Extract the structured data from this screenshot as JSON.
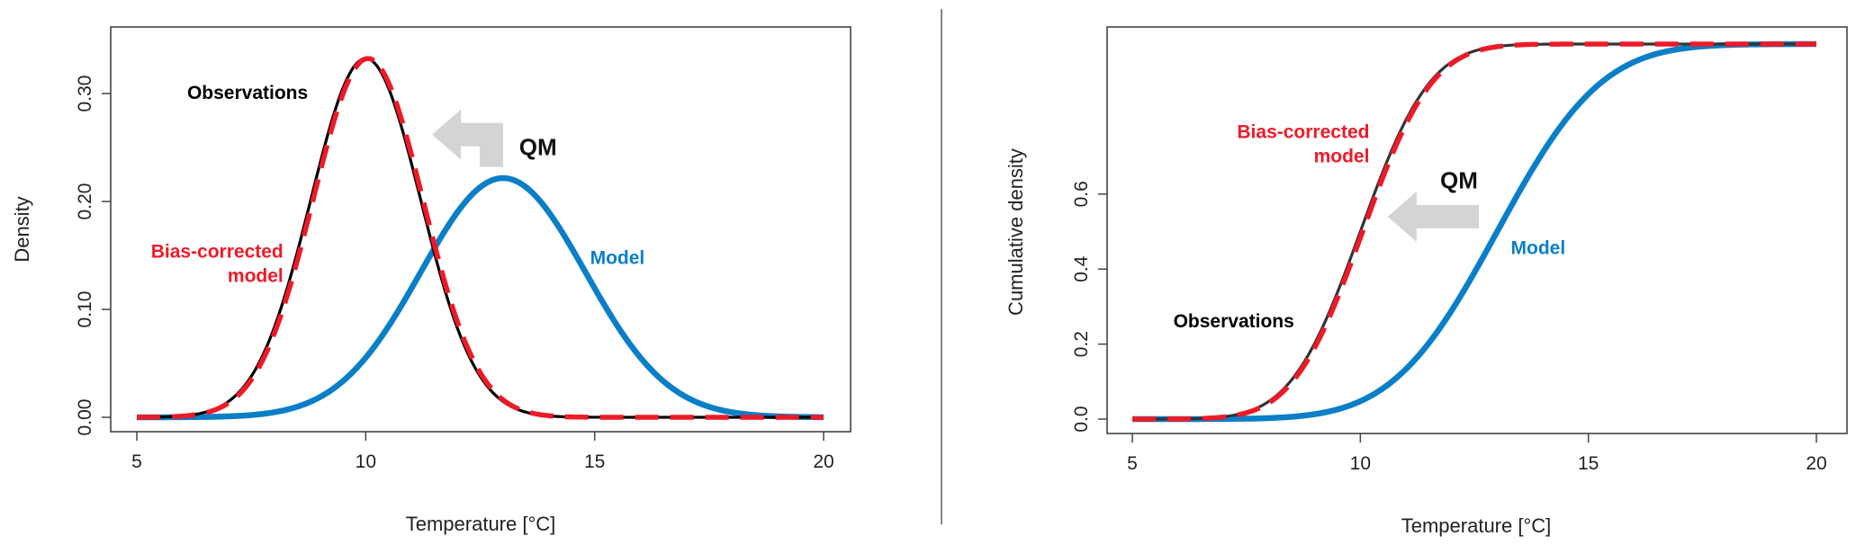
{
  "colors": {
    "observations": "#000000",
    "observations_cdf": "#333333",
    "model": "#0a7fc8",
    "bias_corrected": "#ee1a27",
    "arrow": "#d4d4d4",
    "separator": "#888888"
  },
  "chart_data": [
    {
      "type": "line",
      "title": "",
      "xlabel": "Temperature [°C]",
      "ylabel": "Density",
      "xlim": [
        5,
        20
      ],
      "ylim": [
        0,
        0.33
      ],
      "x_ticks": [
        "5",
        "10",
        "15",
        "20"
      ],
      "y_ticks": [
        "0.00",
        "0.10",
        "0.20",
        "0.30"
      ],
      "grid": false,
      "series": [
        {
          "name": "Observations",
          "kind": "normal_pdf",
          "mean": 10,
          "sd": 1.2,
          "color_key": "observations",
          "dashed": false
        },
        {
          "name": "Model",
          "kind": "normal_pdf",
          "mean": 13,
          "sd": 1.8,
          "color_key": "model",
          "dashed": false
        },
        {
          "name": "Bias-corrected model",
          "kind": "normal_pdf",
          "mean": 10.05,
          "sd": 1.2,
          "color_key": "bias_corrected",
          "dashed": true
        }
      ],
      "annotations": [
        {
          "lines": [
            "Observations"
          ],
          "color_key": "observations",
          "anchor": "start",
          "x": 6.1,
          "y": 0.295
        },
        {
          "lines": [
            "Bias-corrected",
            "model"
          ],
          "color_key": "bias_corrected",
          "anchor": "end",
          "x": 8.2,
          "y": 0.148
        },
        {
          "lines": [
            "Model"
          ],
          "color_key": "model",
          "anchor": "start",
          "x": 14.9,
          "y": 0.142
        },
        {
          "lines": [
            "QM"
          ],
          "color_key": "qm",
          "anchor": "start",
          "x": 13.35,
          "y": 0.243
        }
      ],
      "arrow": {
        "from": [
          13.0,
          0.262
        ],
        "to": [
          11.45,
          0.262
        ],
        "direction": "left"
      }
    },
    {
      "type": "line",
      "title": "",
      "xlabel": "Temperature [°C]",
      "ylabel": "Cumulative density",
      "xlim": [
        5,
        20
      ],
      "ylim": [
        0,
        1
      ],
      "x_ticks": [
        "5",
        "10",
        "15",
        "20"
      ],
      "y_ticks": [
        "0.0",
        "0.2",
        "0.4",
        "0.6"
      ],
      "grid": false,
      "series": [
        {
          "name": "Observations",
          "kind": "normal_cdf",
          "mean": 10,
          "sd": 1.2,
          "color_key": "observations_cdf",
          "dashed": false
        },
        {
          "name": "Model",
          "kind": "normal_cdf",
          "mean": 13,
          "sd": 1.8,
          "color_key": "model",
          "dashed": false
        },
        {
          "name": "Bias-corrected model",
          "kind": "normal_cdf",
          "mean": 10.05,
          "sd": 1.2,
          "color_key": "bias_corrected",
          "dashed": true
        }
      ],
      "annotations": [
        {
          "lines": [
            "Bias-corrected",
            "model"
          ],
          "color_key": "bias_corrected",
          "anchor": "end",
          "x": 10.2,
          "y": 0.75
        },
        {
          "lines": [
            "QM"
          ],
          "color_key": "qm",
          "anchor": "start",
          "x": 11.75,
          "y": 0.615
        },
        {
          "lines": [
            "Model"
          ],
          "color_key": "model",
          "anchor": "start",
          "x": 13.3,
          "y": 0.44
        },
        {
          "lines": [
            "Observations"
          ],
          "color_key": "observations",
          "anchor": "start",
          "x": 5.9,
          "y": 0.245
        }
      ],
      "arrow": {
        "from": [
          12.6,
          0.54
        ],
        "to": [
          10.6,
          0.54
        ],
        "direction": "left"
      }
    }
  ]
}
